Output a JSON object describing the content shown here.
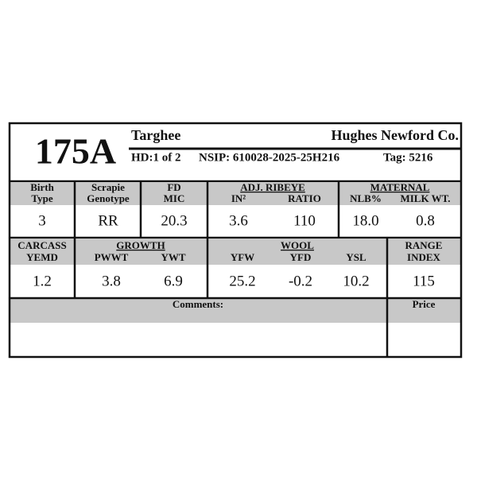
{
  "header": {
    "lot": "175A",
    "breed": "Targhee",
    "breeder": "Hughes Newford Co.",
    "hd": "HD:1 of 2",
    "nsip": "NSIP: 610028-2025-25H216",
    "tag": "Tag: 5216"
  },
  "traits": {
    "birth": {
      "label1": "Birth",
      "label2": "Type",
      "value": "3"
    },
    "scrapie": {
      "label1": "Scrapie",
      "label2": "Genotype",
      "value": "RR"
    },
    "fd": {
      "label1": "FD",
      "label2": "MIC",
      "value": "20.3"
    },
    "ribeye": {
      "title": "ADJ. RIBEYE",
      "in": {
        "label": "IN²",
        "value": "3.6"
      },
      "ratio": {
        "label": "RATIO",
        "value": "110"
      }
    },
    "maternal": {
      "title": "MATERNAL",
      "nlb": {
        "label": "NLB%",
        "value": "18.0"
      },
      "milk": {
        "label": "MILK WT.",
        "value": "0.8"
      }
    },
    "carcass": {
      "label1": "CARCASS",
      "label2": "YEMD",
      "value": "1.2"
    },
    "growth": {
      "title": "GROWTH",
      "pwwt": {
        "label": "PWWT",
        "value": "3.8"
      },
      "ywt": {
        "label": "YWT",
        "value": "6.9"
      }
    },
    "wool": {
      "title": "WOOL",
      "yfw": {
        "label": "YFW",
        "value": "25.2"
      },
      "yfd": {
        "label": "YFD",
        "value": "-0.2"
      },
      "ysl": {
        "label": "YSL",
        "value": "10.2"
      }
    },
    "range": {
      "label1": "RANGE",
      "label2": "INDEX",
      "value": "115"
    }
  },
  "footer": {
    "comments": "Comments:",
    "price": "Price"
  }
}
